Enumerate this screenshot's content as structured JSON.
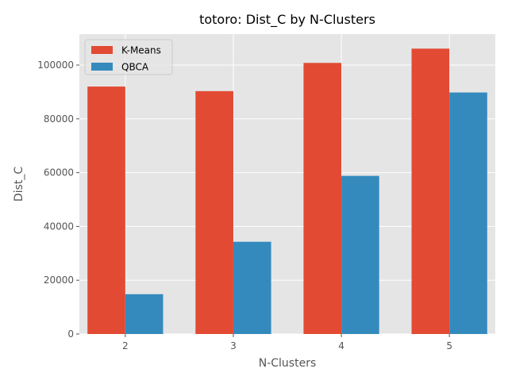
{
  "chart_data": {
    "type": "bar",
    "title": "totoro: Dist_C by N-Clusters",
    "xlabel": "N-Clusters",
    "ylabel": "Dist_C",
    "categories": [
      "2",
      "3",
      "4",
      "5"
    ],
    "series": [
      {
        "name": "K-Means",
        "values": [
          92000,
          90300,
          100800,
          106100
        ],
        "color": "#E24A33"
      },
      {
        "name": "QBCA",
        "values": [
          14800,
          34300,
          58800,
          89800
        ],
        "color": "#348ABD"
      }
    ],
    "ylim": [
      0,
      111500
    ],
    "yticks": [
      0,
      20000,
      40000,
      60000,
      80000,
      100000
    ],
    "ytick_labels": [
      "0",
      "20000",
      "40000",
      "60000",
      "80000",
      "100000"
    ],
    "grid": true,
    "legend_position": "top-left",
    "background_color": "#E5E5E5",
    "grid_color": "#FFFFFF"
  }
}
